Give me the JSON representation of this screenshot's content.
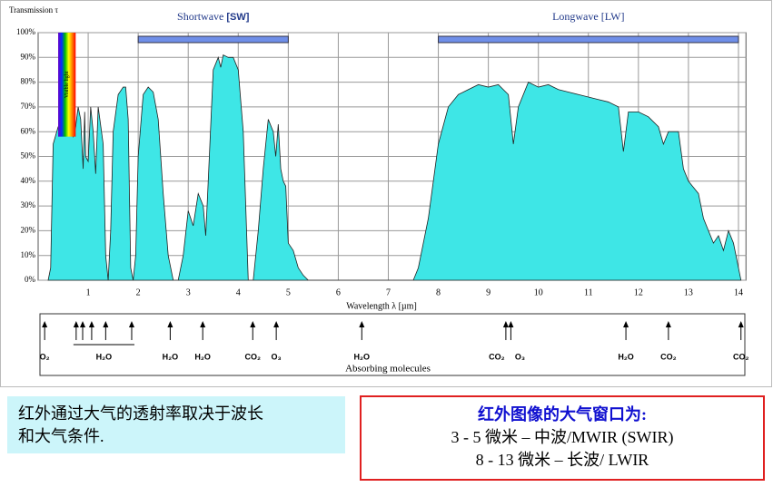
{
  "chart_data": {
    "type": "area",
    "y_label": "Transmission τ",
    "x_label": "Wavelength λ [µm]",
    "color": "#3ee6e6",
    "grid": true,
    "xlim": [
      0,
      14.15
    ],
    "ylim": [
      0,
      100
    ],
    "xticks": [
      1,
      2,
      3,
      4,
      5,
      6,
      7,
      8,
      9,
      10,
      11,
      12,
      13,
      14
    ],
    "yticks": [
      {
        "value": 0,
        "label": "0%"
      },
      {
        "value": 10,
        "label": "10%"
      },
      {
        "value": 20,
        "label": "20%"
      },
      {
        "value": 30,
        "label": "30%"
      },
      {
        "value": 40,
        "label": "40%"
      },
      {
        "value": 50,
        "label": "50%"
      },
      {
        "value": 60,
        "label": "60%"
      },
      {
        "value": 70,
        "label": "70%"
      },
      {
        "value": 80,
        "label": "80%"
      },
      {
        "value": 90,
        "label": "90%"
      },
      {
        "value": 100,
        "label": "100%"
      }
    ],
    "x": [
      0.2,
      0.25,
      0.3,
      0.4,
      0.5,
      0.6,
      0.7,
      0.75,
      0.8,
      0.85,
      0.9,
      0.93,
      0.95,
      1.0,
      1.05,
      1.1,
      1.13,
      1.15,
      1.2,
      1.3,
      1.35,
      1.4,
      1.45,
      1.5,
      1.6,
      1.7,
      1.75,
      1.8,
      1.85,
      1.9,
      1.95,
      2.0,
      2.1,
      2.2,
      2.3,
      2.4,
      2.5,
      2.6,
      2.7,
      2.8,
      2.9,
      3.0,
      3.1,
      3.2,
      3.3,
      3.35,
      3.4,
      3.5,
      3.6,
      3.65,
      3.7,
      3.8,
      3.9,
      4.0,
      4.1,
      4.2,
      4.3,
      4.4,
      4.5,
      4.6,
      4.7,
      4.75,
      4.8,
      4.85,
      4.9,
      4.95,
      5.0,
      5.1,
      5.2,
      5.3,
      5.4,
      7.5,
      7.6,
      7.7,
      7.8,
      7.9,
      8.0,
      8.2,
      8.4,
      8.6,
      8.8,
      9.0,
      9.2,
      9.4,
      9.5,
      9.6,
      9.8,
      10.0,
      10.2,
      10.4,
      10.6,
      10.8,
      11.0,
      11.2,
      11.4,
      11.6,
      11.7,
      11.8,
      12.0,
      12.2,
      12.4,
      12.5,
      12.6,
      12.8,
      12.9,
      13.0,
      13.2,
      13.3,
      13.5,
      13.6,
      13.7,
      13.8,
      13.9,
      14.0,
      14.05
    ],
    "values": [
      0,
      5,
      55,
      62,
      63,
      63,
      58,
      62,
      70,
      65,
      45,
      68,
      50,
      48,
      70,
      60,
      50,
      43,
      70,
      55,
      10,
      0,
      20,
      60,
      75,
      78,
      78,
      65,
      5,
      0,
      10,
      50,
      75,
      78,
      76,
      65,
      35,
      10,
      0,
      0,
      10,
      28,
      22,
      35,
      30,
      18,
      40,
      85,
      90,
      86,
      91,
      90,
      90,
      85,
      60,
      0,
      0,
      20,
      45,
      65,
      60,
      50,
      63,
      45,
      40,
      38,
      15,
      12,
      5,
      2,
      0,
      0,
      5,
      15,
      25,
      40,
      55,
      70,
      75,
      77,
      79,
      78,
      79,
      75,
      55,
      70,
      80,
      78,
      79,
      77,
      76,
      75,
      74,
      73,
      72,
      70,
      52,
      68,
      68,
      66,
      62,
      55,
      60,
      60,
      45,
      40,
      35,
      25,
      15,
      18,
      12,
      20,
      15,
      5,
      0
    ],
    "bands": [
      {
        "label": "Shortwave",
        "label_bold": "[SW]",
        "range": [
          2,
          5
        ]
      },
      {
        "label": "Longwave [LW]",
        "range": [
          8,
          14
        ]
      }
    ],
    "visible": {
      "label": "Visible light",
      "range": [
        0.4,
        0.75
      ],
      "tlim": [
        58,
        100
      ]
    },
    "absorbers_title": "Absorbing molecules",
    "absorbers": [
      {
        "label": "O₂",
        "x": [
          0.13
        ]
      },
      {
        "label": "H₂O",
        "x": [
          0.76,
          0.89,
          1.07,
          1.35,
          1.87
        ]
      },
      {
        "label": "H₂O",
        "x": [
          2.64
        ]
      },
      {
        "label": "H₂O",
        "x": [
          3.29
        ]
      },
      {
        "label": "CO₂",
        "x": [
          4.29
        ]
      },
      {
        "label": "O₃",
        "x": [
          4.76
        ]
      },
      {
        "label": "H₂O",
        "x": [
          6.47
        ]
      },
      {
        "label": "CO₂",
        "x": [
          9.35
        ]
      },
      {
        "label": "O₃",
        "x": [
          9.45
        ]
      },
      {
        "label": "H₂O",
        "x": [
          11.75
        ]
      },
      {
        "label": "CO₂",
        "x": [
          12.6
        ]
      },
      {
        "label": "CO₂",
        "x": [
          14.05
        ]
      }
    ]
  },
  "notes": {
    "left": [
      "红外通过大气的透射率取决于波长",
      "和大气条件."
    ],
    "right_title": "红外图像的大气窗口为:",
    "right": [
      "3 - 5 微米 – 中波/MWIR (SWIR)",
      "8 - 13 微米 – 长波/ LWIR"
    ]
  }
}
